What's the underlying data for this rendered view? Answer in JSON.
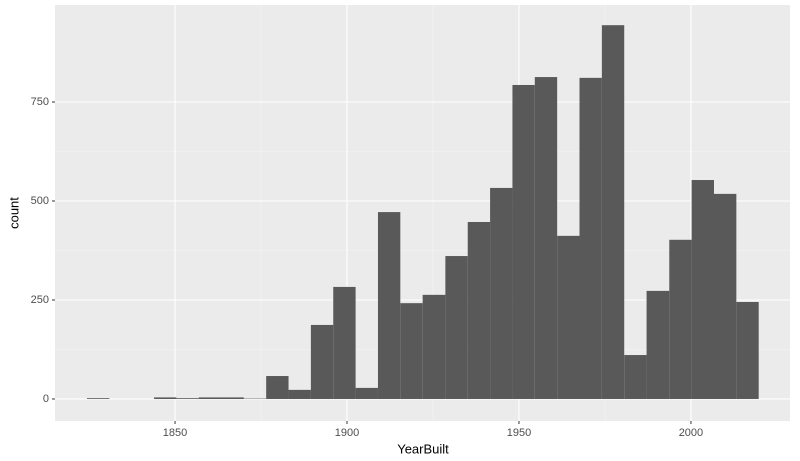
{
  "chart_data": {
    "type": "histogram",
    "x_label": "YearBuilt",
    "y_label": "count",
    "bins": [
      1824.4,
      1830.9,
      1837.4,
      1843.9,
      1850.4,
      1856.9,
      1863.5,
      1870.0,
      1876.5,
      1883.0,
      1889.5,
      1896.0,
      1902.5,
      1909.0,
      1915.5,
      1922.0,
      1928.6,
      1935.1,
      1941.6,
      1948.1,
      1954.6,
      1961.1,
      1967.6,
      1974.1,
      1980.6,
      1987.1,
      1993.7,
      2000.2,
      2006.7,
      2013.2,
      2019.7
    ],
    "values": [
      2,
      0,
      0,
      4,
      2,
      4,
      4,
      1,
      58,
      23,
      187,
      283,
      28,
      472,
      242,
      263,
      361,
      447,
      533,
      793,
      813,
      412,
      811,
      944,
      111,
      273,
      402,
      553,
      518,
      245
    ],
    "color": "#595959",
    "xlim": [
      1815.1,
      2028.8
    ],
    "xticks": [
      1850,
      1900,
      1950,
      2000
    ],
    "ylim": [
      -55.6,
      995
    ],
    "yticks": [
      0,
      250,
      500,
      750
    ],
    "grid": true
  }
}
